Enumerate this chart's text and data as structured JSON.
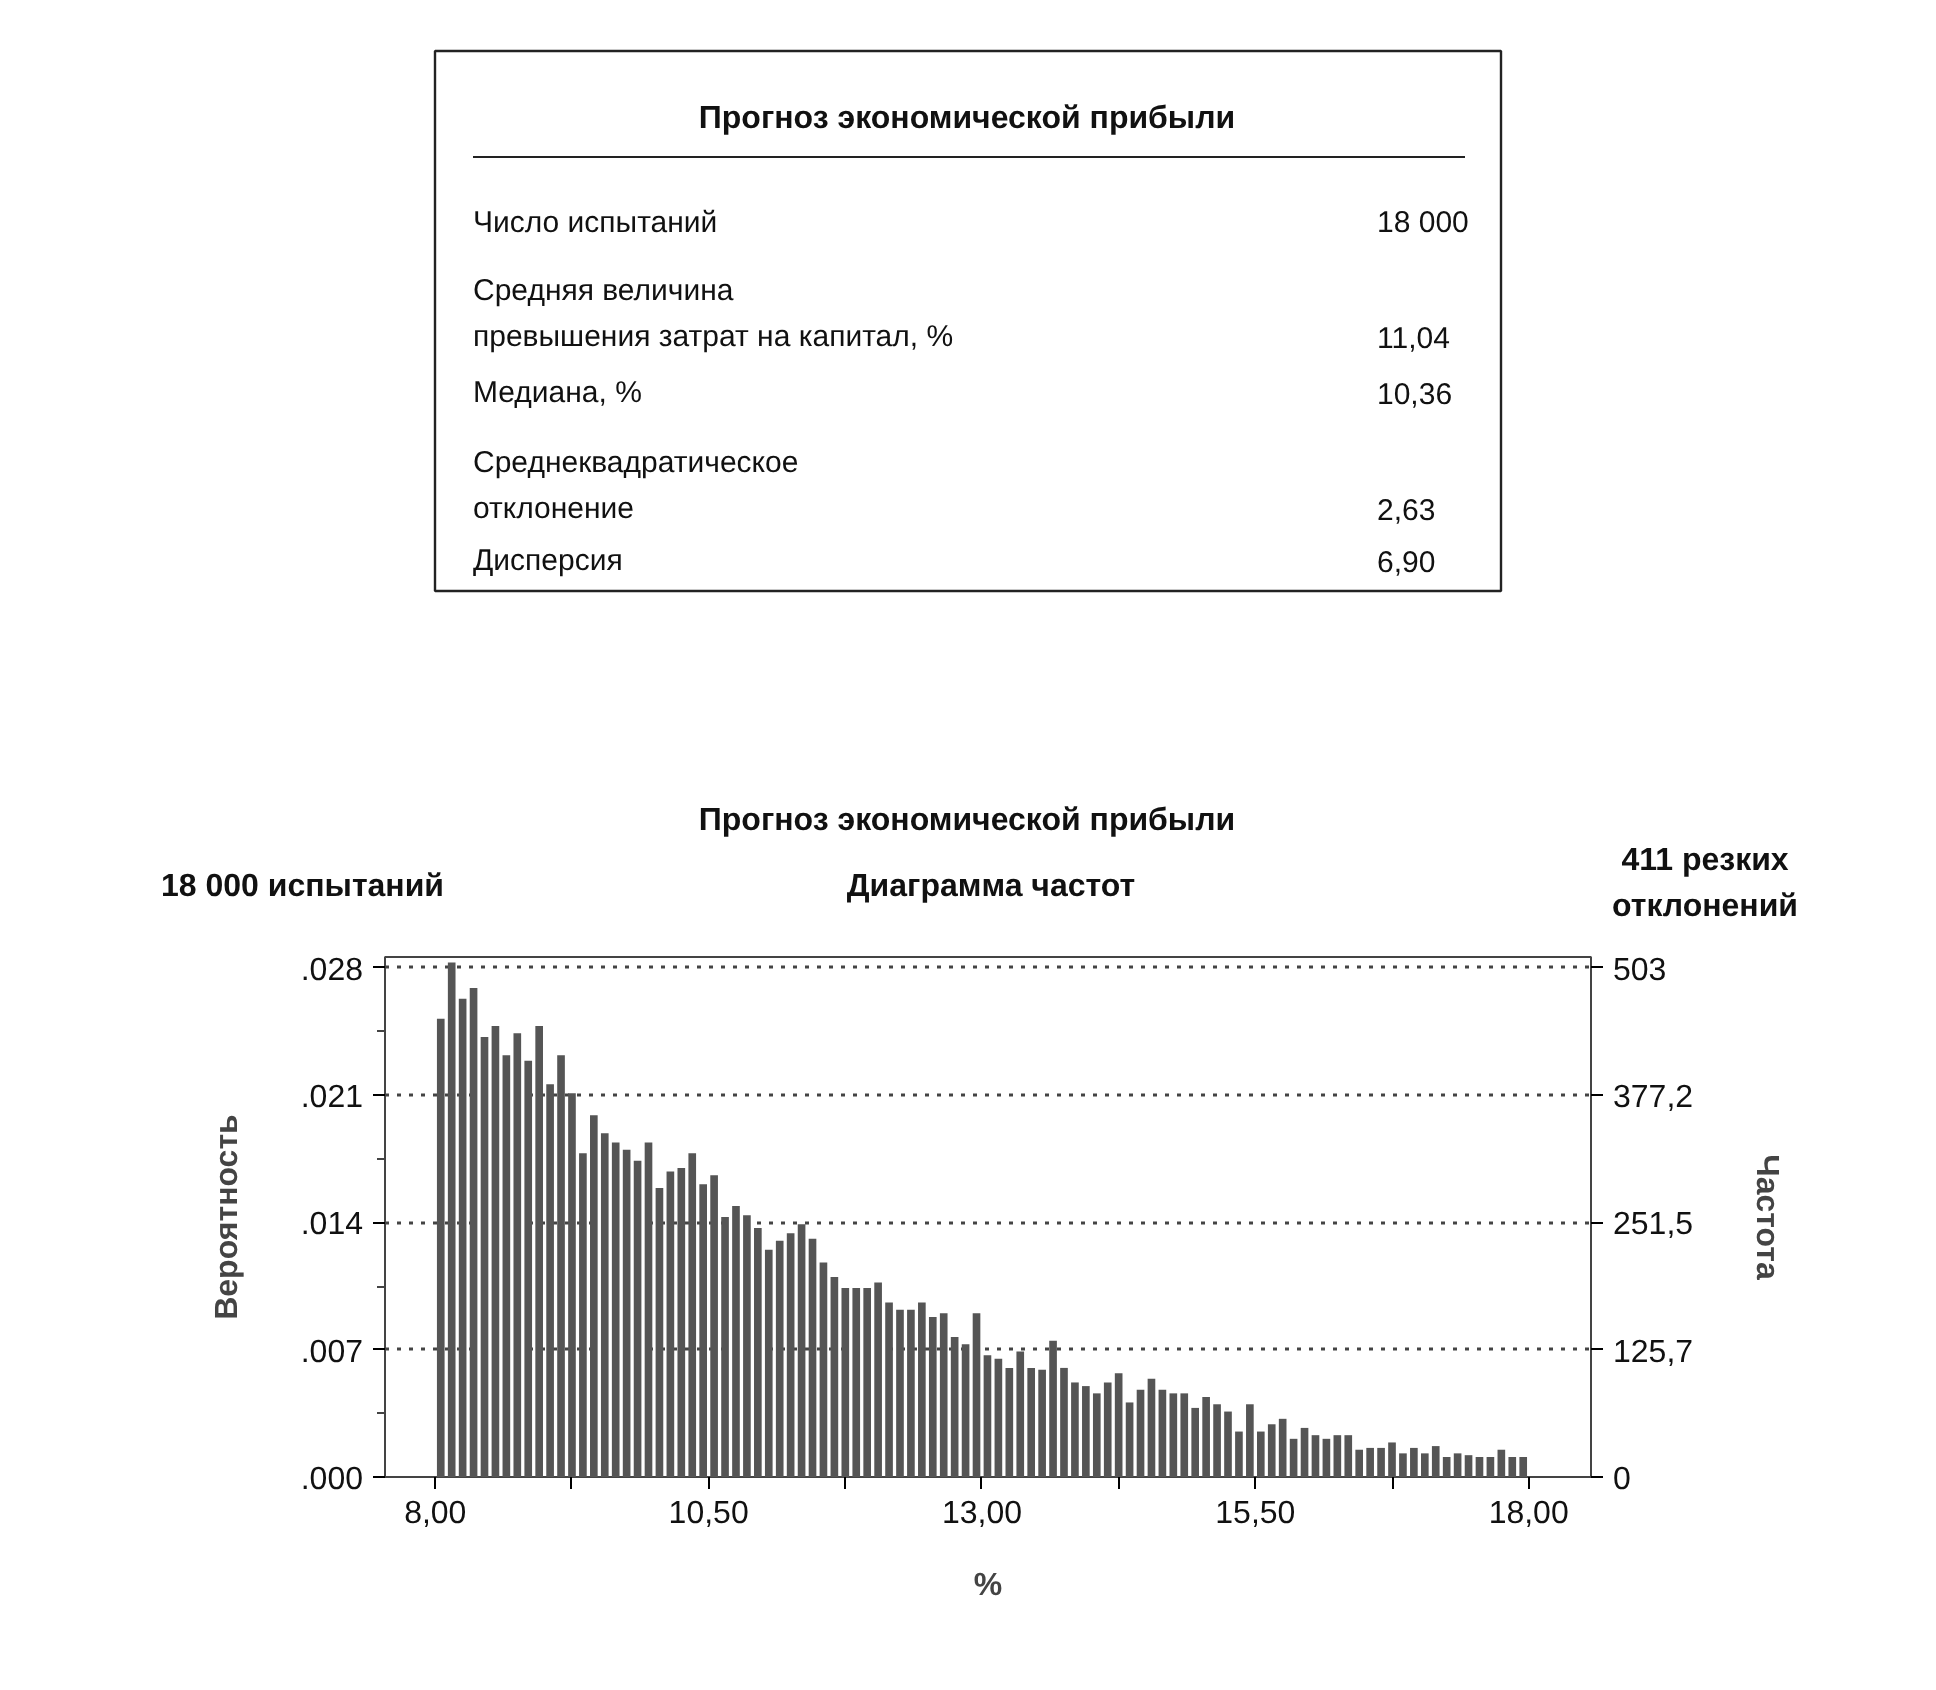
{
  "chart_data": [
    {
      "type": "other",
      "title": "Прогноз экономической прибыли",
      "annotations": [
        "Число испытаний",
        "18 000",
        "Средняя величина\nпревышения затрат на капитал, %",
        "11,04",
        "Медиана, %",
        "10,36",
        "Среднеквадратическое\nотклонение",
        "2,63",
        "Дисперсия",
        "6,90"
      ]
    },
    {
      "type": "histogram",
      "title": "Прогноз экономической прибыли",
      "subtitle": "Диаграмма частот",
      "annotations": [
        "18 000 испытаний",
        "411 резких\nотклонений"
      ],
      "xlabel": "%",
      "ylabel": "Вероятность",
      "y2label": "Частота",
      "color": "#555555",
      "bins": [
        8.0,
        8.1,
        8.2,
        8.3,
        8.4,
        8.5,
        8.6,
        8.7,
        8.8,
        8.9,
        9.0,
        9.1,
        9.2,
        9.3,
        9.4,
        9.5,
        9.6,
        9.7,
        9.8,
        9.9,
        10.0,
        10.1,
        10.2,
        10.3,
        10.4,
        10.5,
        10.6,
        10.7,
        10.8,
        10.9,
        11.0,
        11.1,
        11.2,
        11.3,
        11.4,
        11.5,
        11.6,
        11.7,
        11.8,
        11.9,
        12.0,
        12.1,
        12.2,
        12.3,
        12.4,
        12.5,
        12.6,
        12.7,
        12.8,
        12.9,
        13.0,
        13.1,
        13.2,
        13.3,
        13.4,
        13.5,
        13.6,
        13.7,
        13.8,
        13.9,
        14.0,
        14.1,
        14.2,
        14.3,
        14.4,
        14.5,
        14.6,
        14.7,
        14.8,
        14.9,
        15.0,
        15.1,
        15.2,
        15.3,
        15.4,
        15.5,
        15.6,
        15.7,
        15.8,
        15.9,
        16.0,
        16.1,
        16.2,
        16.3,
        16.4,
        16.5,
        16.6,
        16.7,
        16.8,
        16.9,
        17.0,
        17.1,
        17.2,
        17.3,
        17.4,
        17.5,
        17.6,
        17.7,
        17.8,
        17.9,
        18.0
      ],
      "values": [
        0.0252,
        0.0283,
        0.0263,
        0.0269,
        0.0242,
        0.0248,
        0.0232,
        0.0244,
        0.0229,
        0.0248,
        0.0216,
        0.0232,
        0.0211,
        0.0178,
        0.0199,
        0.0189,
        0.0184,
        0.018,
        0.0174,
        0.0184,
        0.0159,
        0.0168,
        0.017,
        0.0178,
        0.0161,
        0.0166,
        0.0143,
        0.0149,
        0.0144,
        0.0137,
        0.0125,
        0.013,
        0.0134,
        0.0139,
        0.0131,
        0.0118,
        0.011,
        0.0104,
        0.0104,
        0.0104,
        0.0107,
        0.0096,
        0.0092,
        0.0092,
        0.0096,
        0.0088,
        0.009,
        0.0077,
        0.0073,
        0.009,
        0.0067,
        0.0065,
        0.006,
        0.0069,
        0.006,
        0.0059,
        0.0075,
        0.006,
        0.0052,
        0.005,
        0.0046,
        0.0052,
        0.0057,
        0.0041,
        0.0048,
        0.0054,
        0.0048,
        0.0046,
        0.0046,
        0.0038,
        0.0044,
        0.004,
        0.0036,
        0.0025,
        0.004,
        0.0025,
        0.0029,
        0.0032,
        0.0021,
        0.0027,
        0.0023,
        0.0021,
        0.0023,
        0.0023,
        0.0015,
        0.0016,
        0.0016,
        0.0019,
        0.0013,
        0.0016,
        0.0013,
        0.0017,
        0.0011,
        0.0013,
        0.0012,
        0.0011,
        0.0011,
        0.0015,
        0.0011,
        0.0011
      ],
      "xlim": [
        7.54,
        18.57
      ],
      "xticks": [
        {
          "value": 8,
          "label": "8,00"
        },
        {
          "value": 9.25,
          "label": null
        },
        {
          "value": 10.5,
          "label": "10,50"
        },
        {
          "value": 11.75,
          "label": null
        },
        {
          "value": 13,
          "label": "13,00"
        },
        {
          "value": 14.25,
          "label": null
        },
        {
          "value": 15.5,
          "label": "15,50"
        },
        {
          "value": 16.75,
          "label": null
        },
        {
          "value": 18,
          "label": "18,00"
        }
      ],
      "ylim": [
        0,
        0.0286
      ],
      "yticks": [
        {
          "value": 0,
          "label": ".000"
        },
        {
          "value": 0.007,
          "label": ".007"
        },
        {
          "value": 0.014,
          "label": ".014"
        },
        {
          "value": 0.021,
          "label": ".021"
        },
        {
          "value": 0.028,
          "label": ".028"
        }
      ],
      "y2lim": [
        0,
        513.8
      ],
      "y2ticks": [
        0,
        {
          "value": 125.7,
          "label": "125,7"
        },
        {
          "value": 251.5,
          "label": "251,5"
        },
        {
          "value": 377.2,
          "label": "377,2"
        },
        503
      ],
      "grid": "y"
    }
  ]
}
